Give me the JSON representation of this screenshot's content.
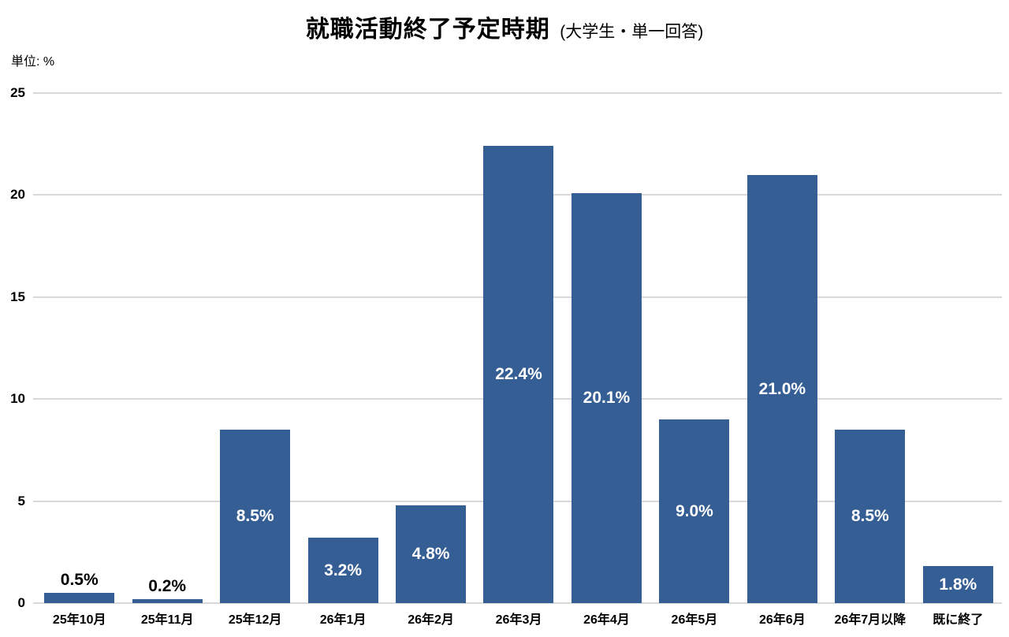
{
  "title": {
    "main": "就職活動終了予定時期",
    "sub": "(大学生・単一回答)"
  },
  "unit_label": "単位: %",
  "chart_data": {
    "type": "bar",
    "title": "就職活動終了予定時期 (大学生・単一回答)",
    "unit": "単位: %",
    "categories": [
      "25年10月",
      "25年11月",
      "25年12月",
      "26年1月",
      "26年2月",
      "26年3月",
      "26年4月",
      "26年5月",
      "26年6月",
      "26年7月以降",
      "既に終了"
    ],
    "values": [
      0.5,
      0.2,
      8.5,
      3.2,
      4.8,
      22.4,
      20.1,
      9.0,
      21.0,
      8.5,
      1.8
    ],
    "data_labels": [
      "0.5%",
      "0.2%",
      "8.5%",
      "3.2%",
      "4.8%",
      "22.4%",
      "20.1%",
      "9.0%",
      "21.0%",
      "8.5%",
      "1.8%"
    ],
    "xlabel": "",
    "ylabel": "%",
    "ylim": [
      0,
      25
    ],
    "yticks": [
      0,
      5,
      10,
      15,
      20,
      25
    ],
    "grid": true,
    "legend": false,
    "bar_color": "#355e95",
    "gridline_color": "#d9d9d9",
    "label_inside_color": "#ffffff",
    "label_outside_color": "#000000"
  }
}
